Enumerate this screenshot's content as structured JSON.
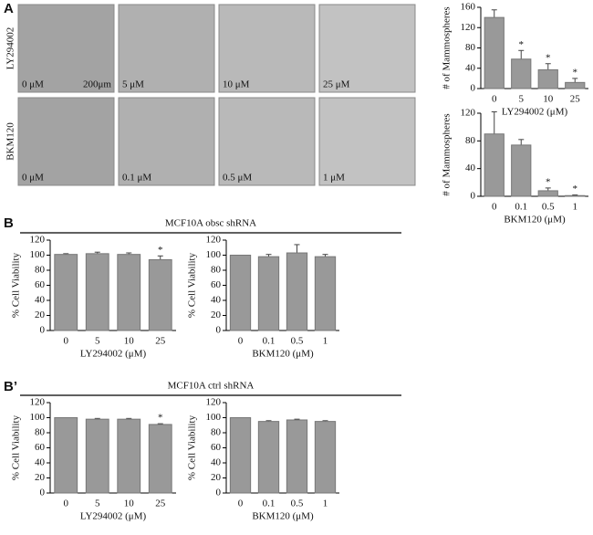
{
  "figure": {
    "panels": [
      "A",
      "B",
      "B’"
    ],
    "image_rows": [
      {
        "label": "LY294002",
        "doses": [
          "0 μM",
          "5 μM",
          "10 μM",
          "25 μM"
        ]
      },
      {
        "label": "BKM120",
        "doses": [
          "0 μM",
          "0.1 μM",
          "0.5 μM",
          "1 μM"
        ]
      }
    ],
    "scale_bar": "200μm",
    "groups": [
      "MCF10A obsc shRNA",
      "MCF10A ctrl shRNA"
    ]
  },
  "chart_data": [
    {
      "type": "bar",
      "ylabel": "# of Mammospheres",
      "xlabel": "LY294002 (μM)",
      "categories": [
        "0",
        "5",
        "10",
        "25"
      ],
      "values": [
        140,
        58,
        37,
        12
      ],
      "errors": [
        15,
        17,
        12,
        8
      ],
      "significance": [
        null,
        "*",
        "*",
        "*"
      ],
      "ylim": [
        0,
        160
      ],
      "yticks": [
        0,
        40,
        80,
        120,
        160
      ],
      "color": "#999999"
    },
    {
      "type": "bar",
      "ylabel": "# of Mammospheres",
      "xlabel": "BKM120 (μM)",
      "categories": [
        "0",
        "0.1",
        "0.5",
        "1"
      ],
      "values": [
        90,
        74,
        8,
        1
      ],
      "errors": [
        32,
        8,
        4,
        1
      ],
      "significance": [
        null,
        null,
        "*",
        "*"
      ],
      "ylim": [
        0,
        120
      ],
      "yticks": [
        0,
        40,
        80,
        120
      ],
      "color": "#999999"
    },
    {
      "type": "bar",
      "ylabel": "% Cell Viability",
      "xlabel": "LY294002 (μM)",
      "categories": [
        "0",
        "5",
        "10",
        "25"
      ],
      "values": [
        101,
        102,
        101,
        94
      ],
      "errors": [
        1,
        2,
        2,
        5
      ],
      "significance": [
        null,
        null,
        null,
        "*"
      ],
      "ylim": [
        0,
        120
      ],
      "yticks": [
        0,
        20,
        40,
        60,
        80,
        100,
        120
      ],
      "color": "#999999"
    },
    {
      "type": "bar",
      "ylabel": "% Cell Viability",
      "xlabel": "BKM120 (μM)",
      "categories": [
        "0",
        "0.1",
        "0.5",
        "1"
      ],
      "values": [
        100,
        98,
        103,
        98
      ],
      "errors": [
        0,
        3,
        11,
        3
      ],
      "significance": [
        null,
        null,
        null,
        null
      ],
      "ylim": [
        0,
        120
      ],
      "yticks": [
        0,
        20,
        40,
        60,
        80,
        100,
        120
      ],
      "color": "#999999"
    },
    {
      "type": "bar",
      "ylabel": "% Cell Viability",
      "xlabel": "LY294002 (μM)",
      "categories": [
        "0",
        "5",
        "10",
        "25"
      ],
      "values": [
        100,
        98,
        98,
        91
      ],
      "errors": [
        0,
        1,
        1,
        1
      ],
      "significance": [
        null,
        null,
        null,
        "*"
      ],
      "ylim": [
        0,
        120
      ],
      "yticks": [
        0,
        20,
        40,
        60,
        80,
        100,
        120
      ],
      "color": "#999999"
    },
    {
      "type": "bar",
      "ylabel": "% Cell Viability",
      "xlabel": "BKM120 (μM)",
      "categories": [
        "0",
        "0.1",
        "0.5",
        "1"
      ],
      "values": [
        100,
        95,
        97,
        95
      ],
      "errors": [
        0,
        1,
        1,
        1
      ],
      "significance": [
        null,
        null,
        null,
        null
      ],
      "ylim": [
        0,
        120
      ],
      "yticks": [
        0,
        20,
        40,
        60,
        80,
        100,
        120
      ],
      "color": "#999999"
    }
  ]
}
